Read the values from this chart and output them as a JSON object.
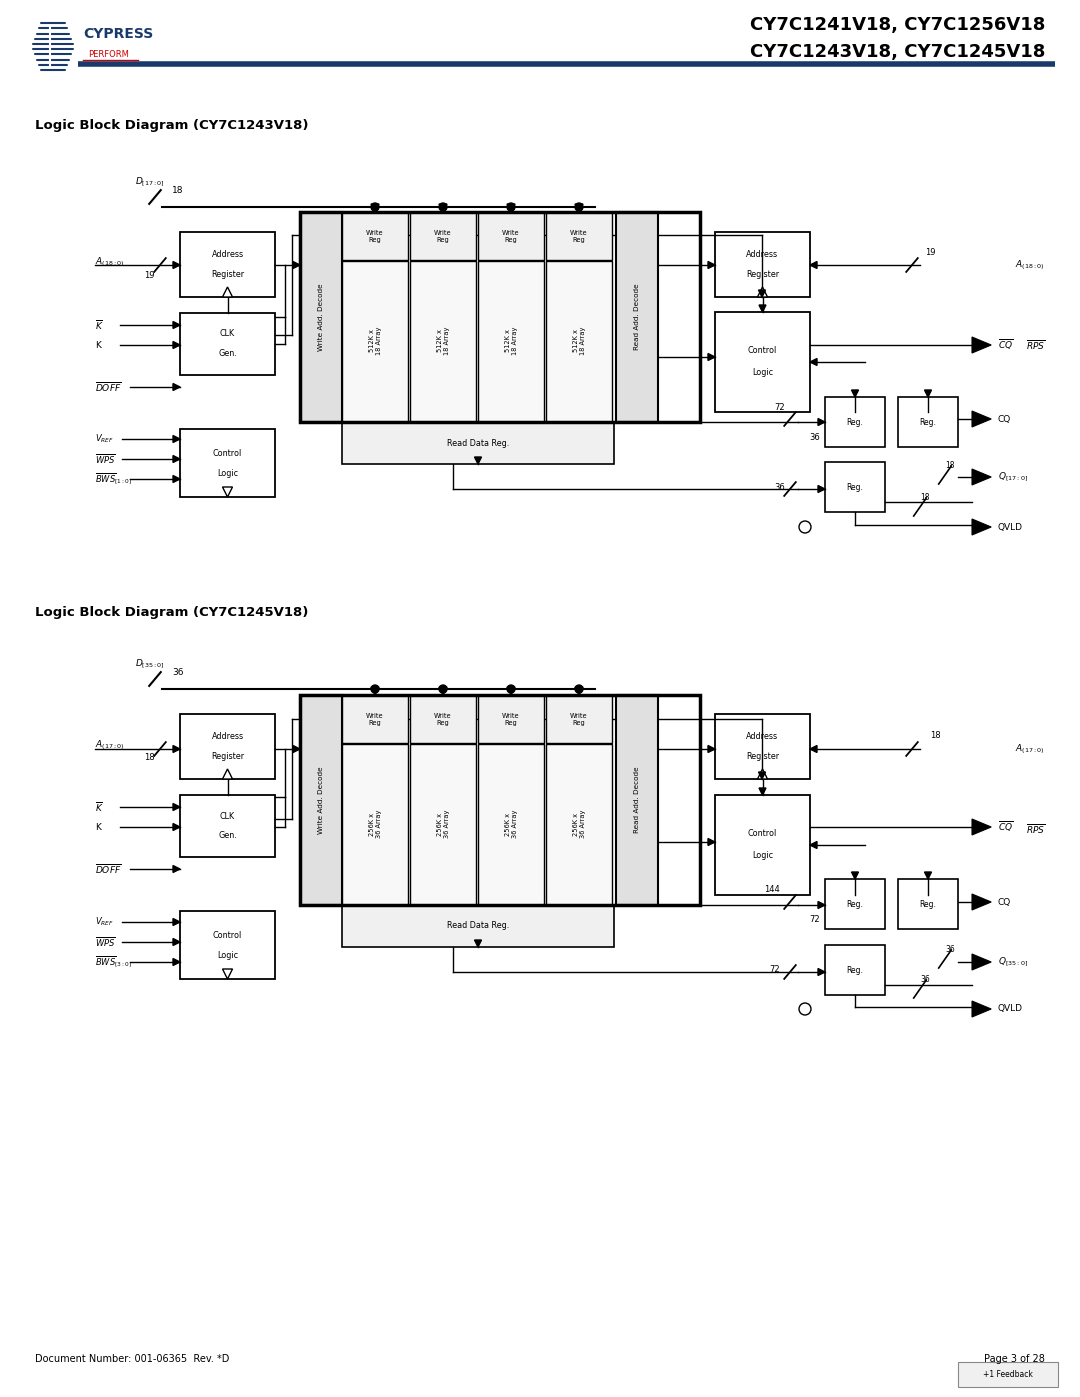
{
  "title_line1": "CY7C1241V18, CY7C1256V18",
  "title_line2": "CY7C1243V18, CY7C1245V18",
  "diagram1_title": "Logic Block Diagram (CY7C1243V18)",
  "diagram2_title": "Logic Block Diagram (CY7C1245V18)",
  "footer_left": "Document Number: 001-06365  Rev. *D",
  "footer_right": "Page 3 of 28",
  "bg_color": "#ffffff",
  "header_line_color": "#1a3a6b",
  "box_fill": "#ffffff",
  "box_edge": "#000000"
}
